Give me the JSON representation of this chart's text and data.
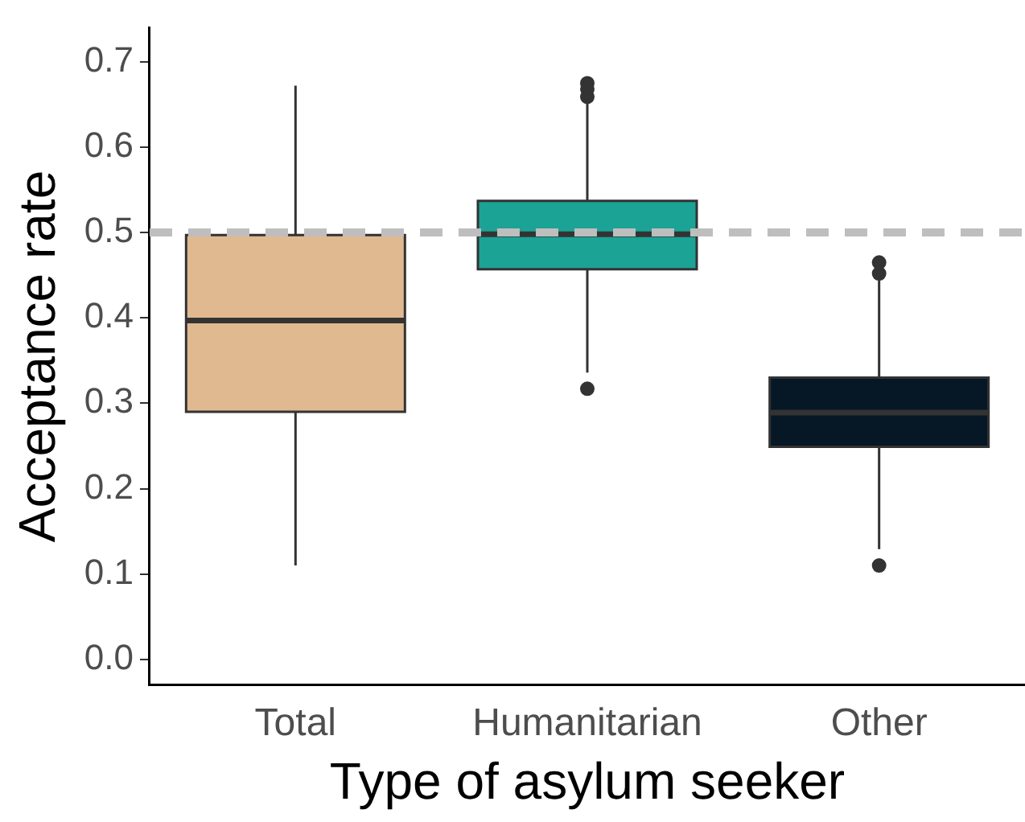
{
  "chart_data": {
    "type": "box",
    "xlabel": "Type of asylum seeker",
    "ylabel": "Acceptance rate",
    "categories": [
      "Total",
      "Humanitarian",
      "Other"
    ],
    "colors": [
      "#e0b990",
      "#1ba396",
      "#061725"
    ],
    "boxes": [
      {
        "low": 0.11,
        "q1": 0.29,
        "median": 0.397,
        "q3": 0.497,
        "high": 0.672
      },
      {
        "low": 0.336,
        "q1": 0.457,
        "median": 0.498,
        "q3": 0.537,
        "high": 0.654,
        "outliers": [
          0.675,
          0.668,
          0.659,
          0.317
        ]
      },
      {
        "low": 0.129,
        "q1": 0.249,
        "median": 0.289,
        "q3": 0.33,
        "high": 0.444,
        "outliers": [
          0.465,
          0.452,
          0.11
        ]
      }
    ],
    "ylim": [
      -0.03,
      0.74
    ],
    "yticks": [
      {
        "value": 0,
        "label": "0.0"
      },
      0.1,
      0.2,
      0.3,
      0.4,
      0.5,
      0.6,
      0.7
    ],
    "ref_lines": [
      {
        "axis": "y",
        "value": 0.5,
        "color": "#bebebe",
        "line_style": "dashed"
      }
    ],
    "grid": false,
    "legend": false
  }
}
